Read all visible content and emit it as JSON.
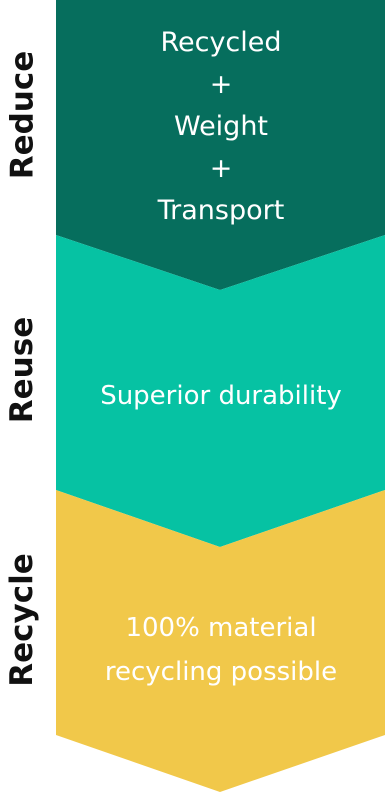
{
  "colors": {
    "reduce": "#066e5d",
    "reuse": "#06c2a3",
    "recycle": "#f1c84a",
    "label": "#111111",
    "text": "#ffffff"
  },
  "stages": [
    {
      "label": "Reduce",
      "lines": [
        "Recycled",
        "+",
        "Weight",
        "+",
        "Transport"
      ]
    },
    {
      "label": "Reuse",
      "lines": [
        "Superior durability"
      ]
    },
    {
      "label": "Recycle",
      "lines": [
        "100% material",
        "recycling possible"
      ]
    }
  ]
}
